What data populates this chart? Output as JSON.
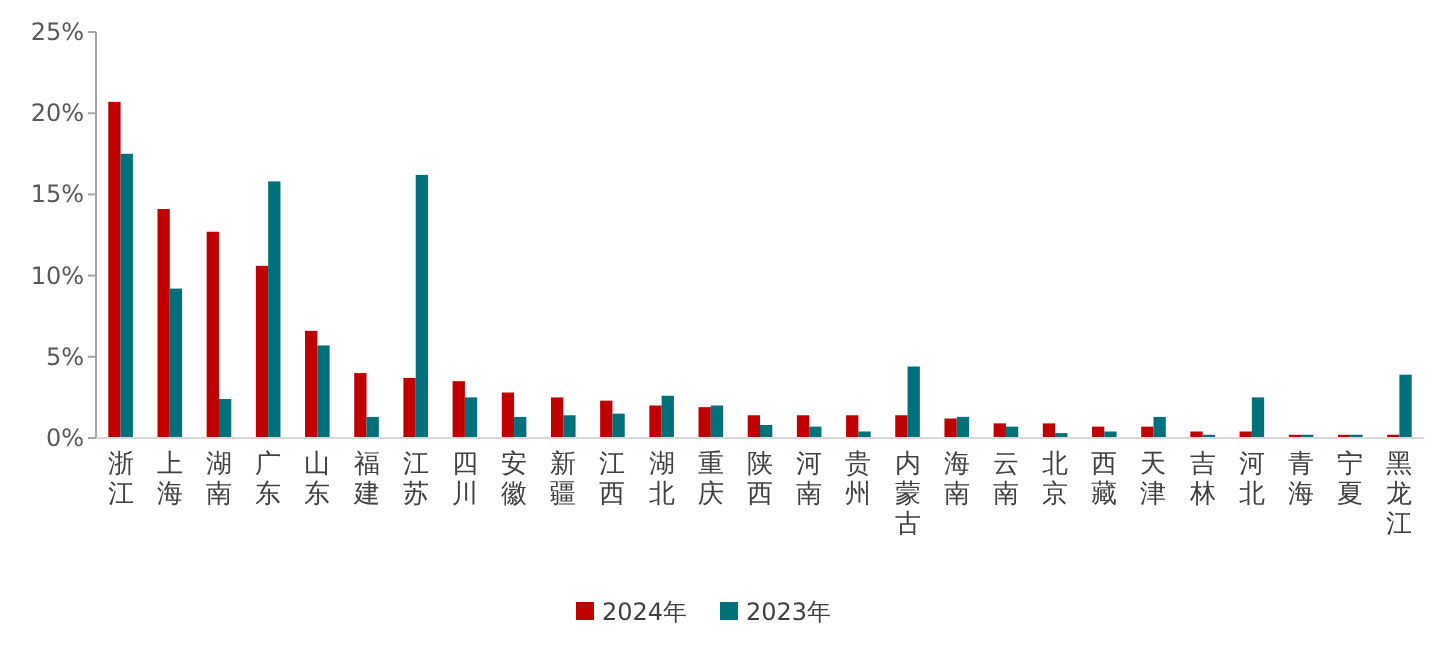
{
  "chart_data": {
    "type": "bar",
    "categories": [
      "浙江",
      "上海",
      "湖南",
      "广东",
      "山东",
      "福建",
      "江苏",
      "四川",
      "安徽",
      "新疆",
      "江西",
      "湖北",
      "重庆",
      "陕西",
      "河南",
      "贵州",
      "内蒙古",
      "海南",
      "云南",
      "北京",
      "西藏",
      "天津",
      "吉林",
      "河北",
      "青海",
      "宁夏",
      "黑龙江"
    ],
    "series": [
      {
        "name": "2024年",
        "color": "#c00000",
        "values": [
          20.7,
          14.1,
          12.7,
          10.6,
          6.6,
          4.0,
          3.7,
          3.5,
          2.8,
          2.5,
          2.3,
          2.0,
          1.9,
          1.4,
          1.4,
          1.4,
          1.4,
          1.2,
          0.9,
          0.9,
          0.7,
          0.7,
          0.4,
          0.4,
          0.2,
          0.2,
          0.2
        ]
      },
      {
        "name": "2023年",
        "color": "#00707a",
        "values": [
          17.5,
          9.2,
          2.4,
          15.8,
          5.7,
          1.3,
          16.2,
          2.5,
          1.3,
          1.4,
          1.5,
          2.6,
          2.0,
          0.8,
          0.7,
          0.4,
          4.4,
          1.3,
          0.7,
          0.3,
          0.4,
          1.3,
          0.2,
          2.5,
          0.2,
          0.2,
          3.9
        ]
      }
    ],
    "ylim": [
      0,
      25
    ],
    "yticks": [
      {
        "value": 0,
        "label": "0%"
      },
      {
        "value": 5,
        "label": "5%"
      },
      {
        "value": 10,
        "label": "10%"
      },
      {
        "value": 15,
        "label": "15%"
      },
      {
        "value": 20,
        "label": "20%"
      },
      {
        "value": 25,
        "label": "25%"
      }
    ],
    "legend": "bottom"
  }
}
